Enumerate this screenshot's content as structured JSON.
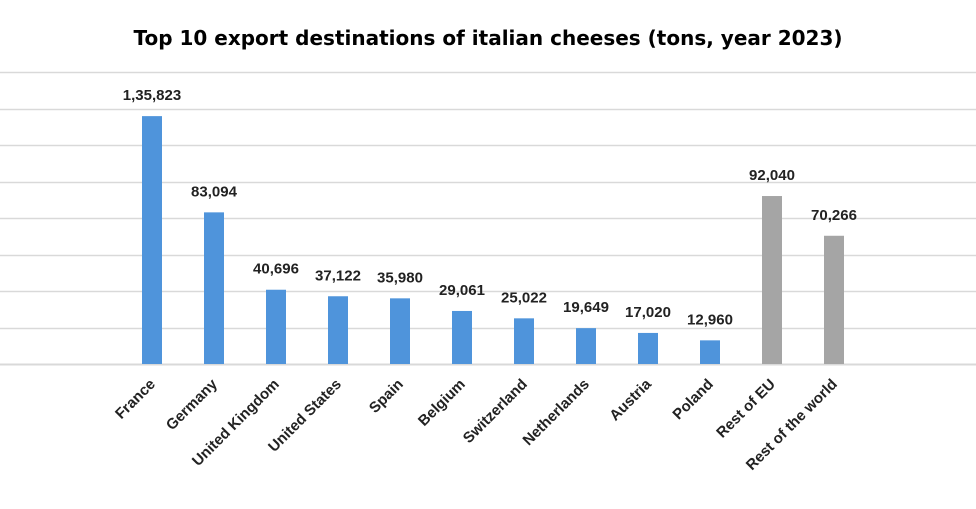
{
  "chart_data": {
    "type": "bar",
    "title": "Top 10 export destinations of italian cheeses (tons, year 2023)",
    "xlabel": "",
    "ylabel": "",
    "categories": [
      "France",
      "Germany",
      "United Kingdom",
      "United States",
      "Spain",
      "Belgium",
      "Switzerland",
      "Netherlands",
      "Austria",
      "Poland",
      "Rest of EU",
      "Rest of the world"
    ],
    "values": [
      135823,
      83094,
      40696,
      37122,
      35980,
      29061,
      25022,
      19649,
      17020,
      12960,
      92040,
      70266
    ],
    "value_labels": [
      "1,35,823",
      "83,094",
      "40,696",
      "37,122",
      "35,980",
      "29,061",
      "25,022",
      "19,649",
      "17,020",
      "12,960",
      "92,040",
      "70,266"
    ],
    "bar_colors": [
      "#4f94db",
      "#4f94db",
      "#4f94db",
      "#4f94db",
      "#4f94db",
      "#4f94db",
      "#4f94db",
      "#4f94db",
      "#4f94db",
      "#4f94db",
      "#a5a5a5",
      "#a5a5a5"
    ],
    "ylim": [
      0,
      160000
    ],
    "grid": true,
    "gridline_color": "#d9d9d9",
    "legend": "none"
  }
}
